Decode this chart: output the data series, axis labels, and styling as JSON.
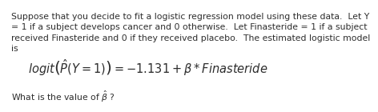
{
  "background_color": "#ffffff",
  "line1": "Suppose that you decide to fit a logistic regression model using these data.  Let Y",
  "line2": "= 1 if a subject develops cancer and 0 otherwise.  Let Finasteride = 1 if a subject",
  "line3": "received Finasteride and 0 if they received placebo.  The estimated logistic model",
  "line4": "is",
  "equation": "$\\mathit{logit}\\left(\\hat{P}(Y = 1)\\right) = -1.131 + \\beta * \\mathit{Finasteride}$",
  "footer_text": "What is the value of $\\hat{\\beta}$ ?",
  "body_fontsize": 7.8,
  "equation_fontsize": 10.5,
  "footer_fontsize": 7.8,
  "text_color": "#2d2d2d"
}
